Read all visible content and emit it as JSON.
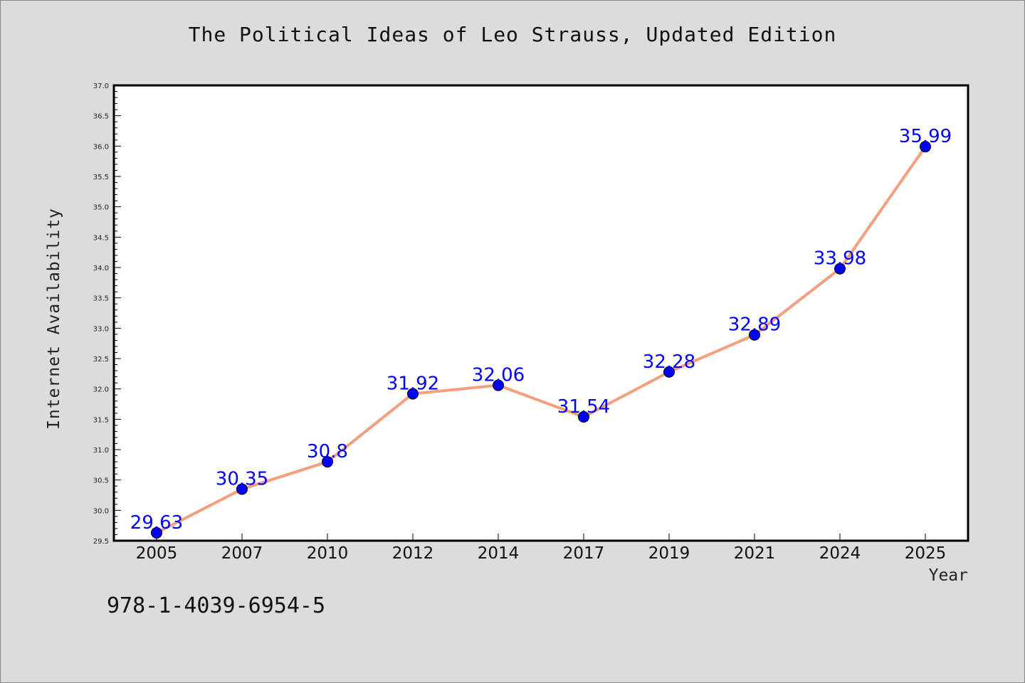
{
  "chart_data": {
    "type": "line",
    "title": "The Political Ideas of Leo Strauss, Updated Edition",
    "xlabel": "Year",
    "ylabel": "Internet Availability",
    "categories": [
      "2005",
      "2007",
      "2010",
      "2012",
      "2014",
      "2017",
      "2019",
      "2021",
      "2024",
      "2025"
    ],
    "series": [
      {
        "values": [
          29.63,
          30.35,
          30.8,
          31.92,
          32.06,
          31.54,
          32.28,
          32.89,
          33.98,
          35.99
        ],
        "labels": [
          "29.63",
          "30.35",
          "30.8",
          "31.92",
          "32.06",
          "31.54",
          "32.28",
          "32.89",
          "33.98",
          "35.99"
        ]
      }
    ],
    "ylim": [
      29.5,
      37.0
    ],
    "yticks": [
      "29.5",
      "30.0",
      "30.5",
      "31.0",
      "31.5",
      "32.0",
      "32.5",
      "33.0",
      "33.5",
      "34.0",
      "34.5",
      "35.0",
      "35.5",
      "36.0",
      "36.5",
      "37.0"
    ],
    "grid": false,
    "line_color": "#f4a07e",
    "marker_color": "#0000ff",
    "label_color": "#0000ff"
  },
  "footer": {
    "isbn": "978-1-4039-6954-5"
  }
}
